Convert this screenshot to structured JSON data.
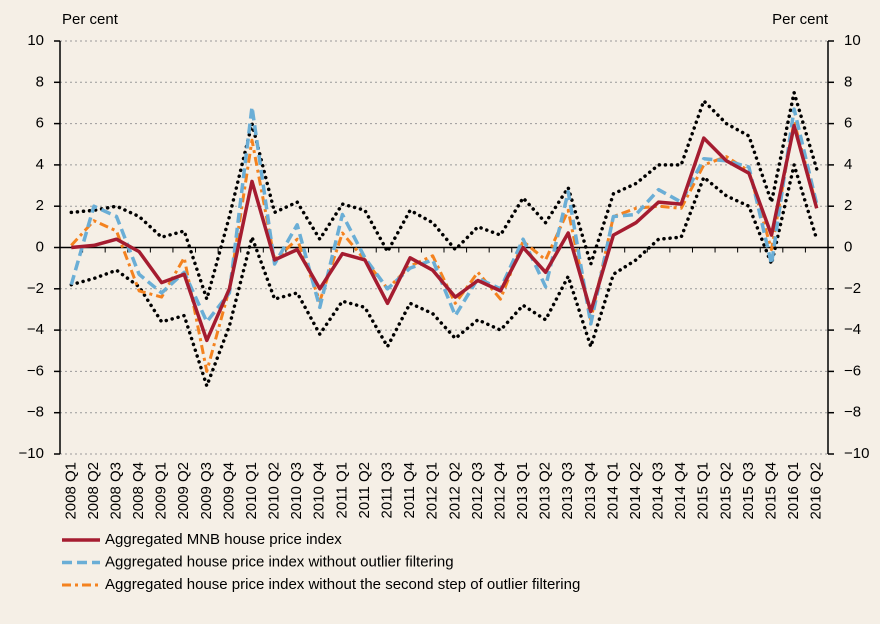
{
  "chart_data": {
    "type": "line",
    "y_label": "Per cent",
    "y2_label": "Per cent",
    "categories": [
      "2008 Q1",
      "2008 Q2",
      "2008 Q3",
      "2008 Q4",
      "2009 Q1",
      "2009 Q2",
      "2009 Q3",
      "2009 Q4",
      "2010 Q1",
      "2010 Q2",
      "2010 Q3",
      "2010 Q4",
      "2011 Q1",
      "2011 Q2",
      "2011 Q3",
      "2011 Q4",
      "2012 Q1",
      "2012 Q2",
      "2012 Q3",
      "2012 Q4",
      "2013 Q1",
      "2013 Q2",
      "2013 Q3",
      "2013 Q4",
      "2014 Q1",
      "2014 Q2",
      "2014 Q3",
      "2014 Q4",
      "2015 Q1",
      "2015 Q2",
      "2015 Q3",
      "2015 Q4",
      "2016 Q1",
      "2016 Q2"
    ],
    "series": [
      {
        "name": "Aggregated MNB house price index",
        "color": "#a51c30",
        "style": "solid",
        "values": [
          0,
          0.1,
          0.4,
          -0.2,
          -1.7,
          -1.3,
          -4.5,
          -2.0,
          3.2,
          -0.6,
          -0.1,
          -2.0,
          -0.3,
          -0.6,
          -2.7,
          -0.5,
          -1.1,
          -2.4,
          -1.6,
          -2.1,
          0.0,
          -1.2,
          0.7,
          -3.1,
          0.6,
          1.2,
          2.2,
          2.1,
          5.3,
          4.2,
          3.6,
          0.6,
          5.9,
          1.9
        ]
      },
      {
        "name": "Aggregated house price index without outlier filtering",
        "color": "#6aaed6",
        "style": "dashed",
        "values": [
          -1.8,
          2.0,
          1.5,
          -1.3,
          -2.2,
          -1.2,
          -3.6,
          -2.2,
          6.8,
          -0.8,
          1.1,
          -2.9,
          1.6,
          -0.5,
          -2.0,
          -1.0,
          -0.6,
          -3.3,
          -1.5,
          -2.0,
          0.4,
          -1.9,
          2.7,
          -3.7,
          1.5,
          1.6,
          2.8,
          2.2,
          4.3,
          4.2,
          3.9,
          -0.8,
          6.7,
          2.1
        ]
      },
      {
        "name": "Aggregated house price index without the second step of outlier filtering",
        "color": "#f4821f",
        "style": "dashdot",
        "values": [
          0.1,
          1.3,
          0.8,
          -2.1,
          -2.4,
          -0.5,
          -6.0,
          -2.0,
          5.2,
          -0.6,
          0.4,
          -2.6,
          0.7,
          -0.6,
          -2.0,
          -0.9,
          -0.4,
          -2.7,
          -1.2,
          -2.5,
          0.3,
          -0.6,
          1.8,
          -3.5,
          1.5,
          1.9,
          2.0,
          1.9,
          4.0,
          4.4,
          3.7,
          -0.1,
          6.1,
          2.0
        ]
      },
      {
        "color": "#000000",
        "style": "dotted",
        "values": [
          1.7,
          1.8,
          2.0,
          1.5,
          0.5,
          0.8,
          -2.5,
          1.5,
          6.0,
          1.7,
          2.2,
          0.4,
          2.1,
          1.8,
          -0.2,
          1.8,
          1.2,
          -0.1,
          1.0,
          0.6,
          2.4,
          1.2,
          2.9,
          -0.8,
          2.6,
          3.1,
          4.0,
          4.0,
          7.1,
          6.0,
          5.4,
          2.2,
          7.5,
          3.8
        ]
      },
      {
        "color": "#000000",
        "style": "dotted",
        "values": [
          -1.8,
          -1.5,
          -1.1,
          -1.9,
          -3.6,
          -3.3,
          -6.7,
          -3.8,
          0.5,
          -2.5,
          -2.2,
          -4.2,
          -2.6,
          -2.9,
          -4.8,
          -2.7,
          -3.2,
          -4.4,
          -3.5,
          -4.0,
          -2.8,
          -3.5,
          -1.4,
          -4.8,
          -1.3,
          -0.6,
          0.4,
          0.5,
          3.4,
          2.5,
          2.0,
          -0.8,
          4.0,
          0.4
        ]
      }
    ],
    "ylim": [
      -10,
      10
    ],
    "yticks": [
      {
        "value": -10,
        "label": "−10"
      },
      {
        "value": -8,
        "label": "−8"
      },
      {
        "value": -6,
        "label": "−6"
      },
      {
        "value": -4,
        "label": "−4"
      },
      {
        "value": -2,
        "label": "−2"
      },
      0,
      2,
      4,
      6,
      8,
      10
    ],
    "y2lim": [
      -10,
      10
    ],
    "y2ticks": [
      {
        "value": -10,
        "label": "−10"
      },
      {
        "value": -8,
        "label": "−8"
      },
      {
        "value": -6,
        "label": "−6"
      },
      {
        "value": -4,
        "label": "−4"
      },
      {
        "value": -2,
        "label": "−2"
      },
      0,
      2,
      4,
      6,
      8,
      10
    ],
    "grid": true,
    "legend": "bottom-left"
  }
}
